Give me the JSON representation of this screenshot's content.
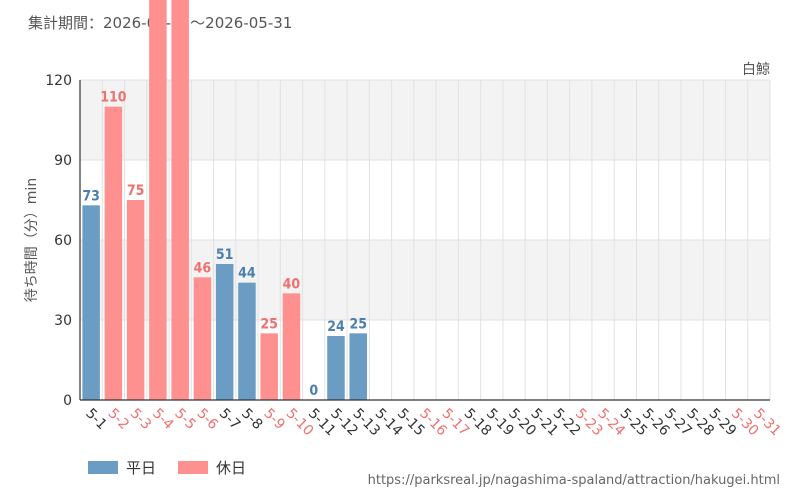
{
  "period_text": "集計期間：2026-05-01～2026-05-31",
  "source_url": "https://parksreal.jp/nagashima-spaland/attraction/hakugei.html",
  "legend": [
    {
      "label": "平日",
      "color": "#6a9cc4"
    },
    {
      "label": "休日",
      "color": "#ff9090"
    }
  ],
  "chart_data": {
    "type": "bar",
    "title": "白鯨",
    "ylabel": "待ち時間（分）min",
    "xlabel": "",
    "ylim": [
      0,
      120
    ],
    "yticks": [
      0,
      30,
      60,
      90,
      120
    ],
    "grid": true,
    "legend_position": "bottom-left",
    "categories": [
      "5-1",
      "5-2",
      "5-3",
      "5-4",
      "5-5",
      "5-6",
      "5-7",
      "5-8",
      "5-9",
      "5-10",
      "5-11",
      "5-12",
      "5-13",
      "5-14",
      "5-15",
      "5-16",
      "5-17",
      "5-18",
      "5-19",
      "5-20",
      "5-21",
      "5-22",
      "5-23",
      "5-24",
      "5-25",
      "5-26",
      "5-27",
      "5-28",
      "5-29",
      "5-30",
      "5-31"
    ],
    "day_type": [
      "平日",
      "休日",
      "休日",
      "休日",
      "休日",
      "休日",
      "平日",
      "平日",
      "休日",
      "休日",
      "平日",
      "平日",
      "平日",
      "平日",
      "平日",
      "休日",
      "休日",
      "平日",
      "平日",
      "平日",
      "平日",
      "平日",
      "休日",
      "休日",
      "平日",
      "平日",
      "平日",
      "平日",
      "平日",
      "休日",
      "休日"
    ],
    "values": [
      73,
      110,
      75,
      null,
      null,
      46,
      51,
      44,
      25,
      40,
      0,
      24,
      25,
      null,
      null,
      null,
      null,
      null,
      null,
      null,
      null,
      null,
      null,
      null,
      null,
      null,
      null,
      null,
      null,
      null,
      null
    ],
    "clipped_over_max": [
      false,
      false,
      false,
      true,
      true,
      false,
      false,
      false,
      false,
      false,
      false,
      false,
      false,
      false,
      false,
      false,
      false,
      false,
      false,
      false,
      false,
      false,
      false,
      false,
      false,
      false,
      false,
      false,
      false,
      false,
      false
    ],
    "colors": {
      "weekday": "#6a9cc4",
      "holiday": "#ff9090",
      "weekday_label": "#4a7fb0",
      "holiday_label": "#f07070",
      "band": "#f3f3f3",
      "grid": "#e2e2e2",
      "axis": "#333333"
    }
  }
}
